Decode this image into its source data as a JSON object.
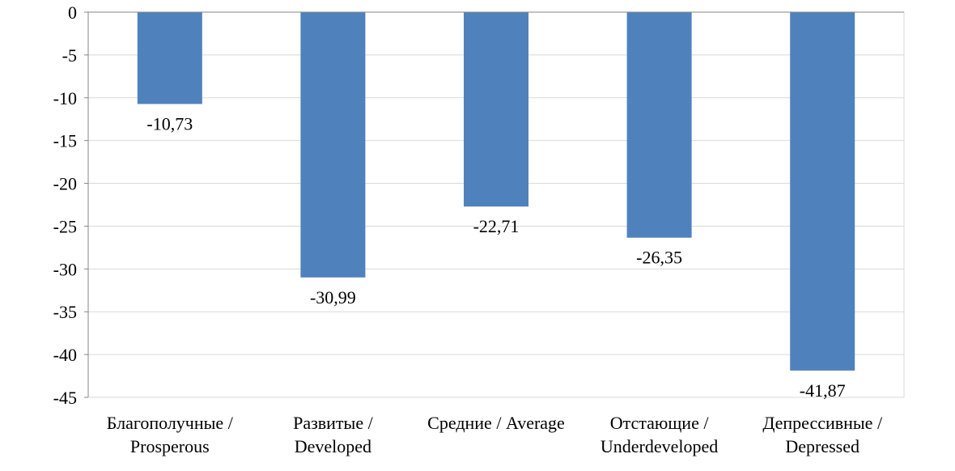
{
  "chart_data": {
    "type": "bar",
    "categories": [
      [
        "Благополучные /",
        "Prosperous"
      ],
      [
        "Развитые /",
        "Developed"
      ],
      [
        "Средние / Average"
      ],
      [
        "Отстающие /",
        "Underdeveloped"
      ],
      [
        "Депрессивные /",
        "Depressed"
      ]
    ],
    "values": [
      -10.73,
      -30.99,
      -22.71,
      -26.35,
      -41.87
    ],
    "data_labels": [
      "-10,73",
      "-30,99",
      "-22,71",
      "-26,35",
      "-41,87"
    ],
    "ylim": [
      -45,
      0
    ],
    "yticks": [
      0,
      -5,
      -10,
      -15,
      -20,
      -25,
      -30,
      -35,
      -40,
      -45
    ],
    "ytick_labels": [
      "0",
      "-5",
      "-10",
      "-15",
      "-20",
      "-25",
      "-30",
      "-35",
      "-40",
      "-45"
    ],
    "grid": true,
    "legend": "none",
    "title": "",
    "xlabel": "",
    "ylabel": "",
    "colors": {
      "bar": "#4F81BD",
      "grid": "#D9D9D9",
      "axis": "#868686"
    }
  }
}
